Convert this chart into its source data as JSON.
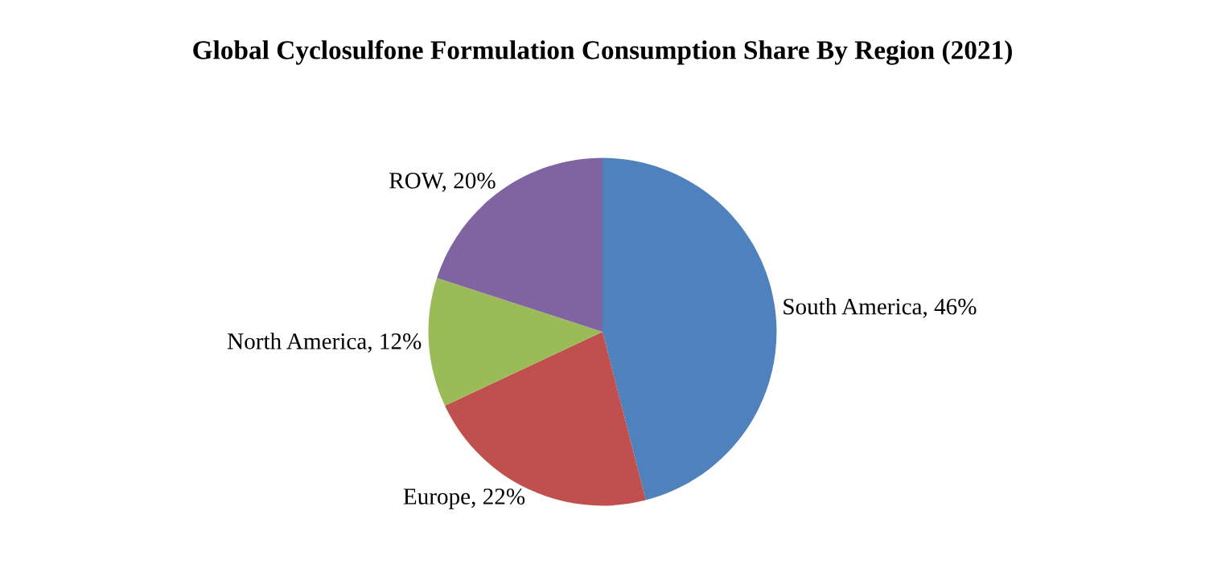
{
  "chart_data": {
    "type": "pie",
    "title": "Global Cyclosulfone Formulation Consumption Share By Region (2021)",
    "categories": [
      "South America",
      "Europe",
      "North America",
      "ROW"
    ],
    "values": [
      46,
      22,
      12,
      20
    ],
    "value_labels": [
      "46%",
      "22%",
      "12%",
      "20%"
    ],
    "colors": [
      "#4f81bd",
      "#c0504d",
      "#9bbb59",
      "#8064a2"
    ]
  }
}
